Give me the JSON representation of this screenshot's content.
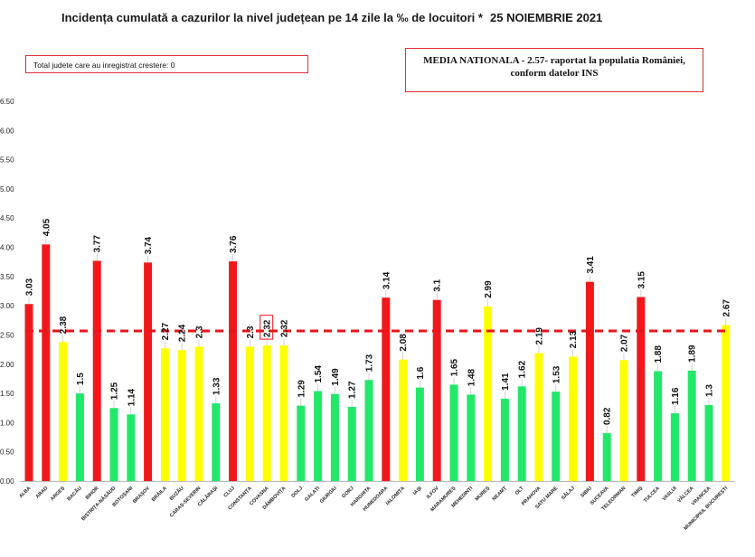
{
  "header": {
    "title": "Incidența cumulată a cazurilor la nivel județean pe 14 zile la ‰ de locuitori *",
    "date": "25 NOIEMBRIE 2021"
  },
  "notes": {
    "increase_count": "Total judete care au inregistrat crestere: 0",
    "national_line1": "MEDIA NATIONALA - 2.57-  raportat la populatia României,",
    "national_line2": "conform datelor INS"
  },
  "chart_data": {
    "type": "bar",
    "title": "Incidența cumulată a cazurilor la nivel județean pe 14 zile la ‰ de locuitori *",
    "ylim": [
      0,
      6.5
    ],
    "yticks": [
      "0.00",
      "0.50",
      "1.00",
      "1.50",
      "2.00",
      "2.50",
      "3.00",
      "3.50",
      "4.00",
      "4.50",
      "5.00",
      "5.50",
      "6.00",
      "6.50"
    ],
    "grid": false,
    "reference_line": {
      "value": 2.57,
      "style": "dashed",
      "color": "#e8141a"
    },
    "colors": {
      "red": "#f0181c",
      "yellow": "#ffff00",
      "green": "#22e86a"
    },
    "categories": [
      "ALBA",
      "ARAD",
      "ARGEȘ",
      "BACĂU",
      "BIHOR",
      "BISTRIȚA-NĂSĂUD",
      "BOTOȘANI",
      "BRAȘOV",
      "BRĂILA",
      "BUZĂU",
      "CARAȘ-SEVERIN",
      "CĂLĂRAȘI",
      "CLUJ",
      "CONSTANȚA",
      "COVASNA",
      "DÂMBOVIȚA",
      "DOLJ",
      "GALAȚI",
      "GIURGIU",
      "GORJ",
      "HARGHITA",
      "HUNEDOARA",
      "IALOMIȚA",
      "IAȘI",
      "ILFOV",
      "MARAMUREȘ",
      "MEHEDINȚI",
      "MUREȘ",
      "NEAMȚ",
      "OLT",
      "PRAHOVA",
      "SATU MARE",
      "SĂLAJ",
      "SIBIU",
      "SUCEAVA",
      "TELEORMAN",
      "TIMIȘ",
      "TULCEA",
      "VASLUI",
      "VÂLCEA",
      "VRANCEA",
      "MUNICIPIUL BUCUREȘTI"
    ],
    "values": [
      3.03,
      4.05,
      2.38,
      1.5,
      3.77,
      1.25,
      1.14,
      3.74,
      2.27,
      2.24,
      2.3,
      1.33,
      3.76,
      2.3,
      2.32,
      2.32,
      1.29,
      1.54,
      1.49,
      1.27,
      1.73,
      3.14,
      2.08,
      1.6,
      3.1,
      1.65,
      1.48,
      2.99,
      1.41,
      1.62,
      2.19,
      1.53,
      2.13,
      3.41,
      0.82,
      2.07,
      3.15,
      1.88,
      1.16,
      1.89,
      1.3,
      2.67
    ],
    "value_labels": [
      "3.03",
      "4.05",
      "2.38",
      "1.5",
      "3.77",
      "1.25",
      "1.14",
      "3.74",
      "2.27",
      "2.24",
      "2.3",
      "1.33",
      "3.76",
      "2.3",
      "2.32",
      "2.32",
      "1.29",
      "1.54",
      "1.49",
      "1.27",
      "1.73",
      "3.14",
      "2.08",
      "1.6",
      "3.1",
      "1.65",
      "1.48",
      "2.99",
      "1.41",
      "1.62",
      "2.19",
      "1.53",
      "2.13",
      "3.41",
      "0.82",
      "2.07",
      "3.15",
      "1.88",
      "1.16",
      "1.89",
      "1.3",
      "2.67"
    ],
    "bar_colors": [
      "red",
      "red",
      "yellow",
      "green",
      "red",
      "green",
      "green",
      "red",
      "yellow",
      "yellow",
      "yellow",
      "green",
      "red",
      "yellow",
      "yellow",
      "yellow",
      "green",
      "green",
      "green",
      "green",
      "green",
      "red",
      "yellow",
      "green",
      "red",
      "green",
      "green",
      "yellow",
      "green",
      "green",
      "yellow",
      "green",
      "yellow",
      "red",
      "green",
      "yellow",
      "red",
      "green",
      "green",
      "green",
      "green",
      "yellow"
    ],
    "highlighted_label_index": 14
  }
}
